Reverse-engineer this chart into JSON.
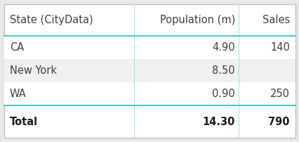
{
  "headers": [
    "State (CityData)",
    "Population (m)",
    "Sales"
  ],
  "rows": [
    [
      "CA",
      "4.90",
      "140"
    ],
    [
      "New York",
      "8.50",
      ""
    ],
    [
      "WA",
      "0.90",
      "250"
    ]
  ],
  "total_row": [
    "Total",
    "14.30",
    "790"
  ],
  "header_line_color": "#4ec8c8",
  "total_line_color": "#4ec8c8",
  "col_sep_color": "#b0e0e0",
  "border_color": "#c0c0c0",
  "text_color": "#404040",
  "total_text_color": "#1a1a1a",
  "header_fontsize": 10.5,
  "row_fontsize": 10.5,
  "total_fontsize": 10.5,
  "bg_color": "#e8e8e8",
  "table_bg": "#ffffff",
  "alt_row_color": "#f0f0f0",
  "row_colors": [
    "#ffffff",
    "#f0f0f0",
    "#ffffff"
  ]
}
